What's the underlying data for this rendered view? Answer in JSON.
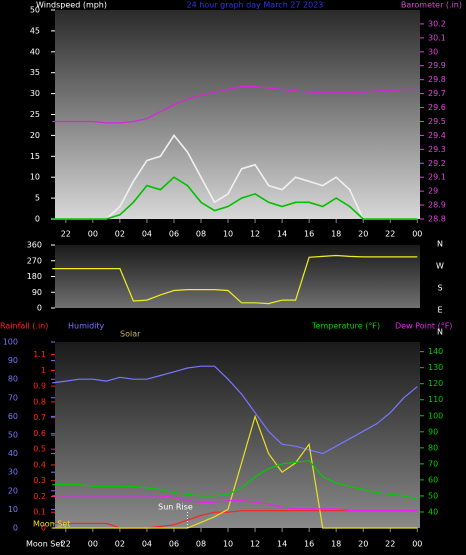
{
  "chart_data": [
    {
      "type": "line",
      "title": "24 hour graph day   March 27 2023",
      "y_label": "Windspeed (mph)",
      "y2_label": "Barometer (.in)",
      "x": [
        -3,
        -2,
        -1,
        0,
        1,
        2,
        3,
        4,
        5,
        6,
        7,
        8,
        9,
        10,
        11,
        12,
        13,
        14,
        15,
        16,
        17,
        18,
        19,
        20,
        21,
        22,
        23,
        24
      ],
      "xlim": [
        -2.8,
        24.2
      ],
      "xticks": [
        {
          "value": -2,
          "label": "22"
        },
        {
          "value": 0,
          "label": "00"
        },
        {
          "value": 2,
          "label": "02"
        },
        {
          "value": 4,
          "label": "04"
        },
        {
          "value": 6,
          "label": "06"
        },
        {
          "value": 8,
          "label": "08"
        },
        10,
        12,
        14,
        16,
        18,
        20,
        22,
        {
          "value": 24,
          "label": "00"
        }
      ],
      "ylim": [
        0,
        50
      ],
      "yticks": [
        0,
        5,
        10,
        15,
        20,
        25,
        30,
        35,
        40,
        45,
        50
      ],
      "ycolor": "#ffffff",
      "y2lim": [
        28.8,
        30.3
      ],
      "y2ticks": [
        28.8,
        28.9,
        29,
        29.1,
        29.2,
        29.3,
        29.4,
        29.5,
        29.6,
        29.7,
        29.8,
        29.9,
        30,
        30.1,
        30.2
      ],
      "y2color": "#dd44dd",
      "series": [
        {
          "color": "#f0f0f0",
          "values": [
            0,
            0,
            0,
            0,
            0,
            3,
            9,
            14,
            15,
            20,
            16,
            10,
            4,
            6,
            12,
            13,
            8,
            7,
            10,
            9,
            8,
            10,
            7,
            0,
            0,
            0,
            0,
            0
          ]
        },
        {
          "color": "#00c000",
          "values": [
            0,
            0,
            0,
            0,
            0,
            1,
            4,
            8,
            7,
            10,
            8,
            4,
            2,
            3,
            5,
            6,
            4,
            3,
            4,
            4,
            3,
            5,
            3,
            0,
            0,
            0,
            0,
            0
          ]
        },
        {
          "color": "#dd22dd",
          "axis": "y2",
          "values": [
            29.5,
            29.5,
            29.5,
            29.5,
            29.49,
            29.49,
            29.5,
            29.52,
            29.57,
            29.62,
            29.66,
            29.69,
            29.71,
            29.73,
            29.75,
            29.75,
            29.74,
            29.73,
            29.72,
            29.71,
            29.71,
            29.71,
            29.71,
            29.71,
            29.72,
            29.72,
            29.73,
            29.73
          ]
        }
      ]
    },
    {
      "type": "line",
      "compass": [
        "N",
        "W",
        "S",
        "E",
        "N"
      ],
      "x": [
        -3,
        -2,
        -1,
        0,
        1,
        2,
        3,
        4,
        5,
        6,
        7,
        8,
        9,
        10,
        11,
        12,
        13,
        14,
        15,
        16,
        17,
        18,
        19,
        20,
        21,
        22,
        23,
        24
      ],
      "xlim": [
        -2.8,
        24.2
      ],
      "ylim": [
        0,
        360
      ],
      "yticks": [
        0,
        90,
        180,
        270,
        360
      ],
      "ycolor": "#ffffff",
      "series": [
        {
          "color": "#eeee22",
          "values": [
            225,
            225,
            225,
            225,
            225,
            225,
            40,
            45,
            75,
            100,
            105,
            105,
            105,
            100,
            30,
            30,
            25,
            45,
            45,
            290,
            295,
            300,
            295,
            292,
            292,
            292,
            292,
            292
          ]
        }
      ]
    },
    {
      "type": "line",
      "x": [
        -3,
        -2,
        -1,
        0,
        1,
        2,
        3,
        4,
        5,
        6,
        7,
        8,
        9,
        10,
        11,
        12,
        13,
        14,
        15,
        16,
        17,
        18,
        19,
        20,
        21,
        22,
        23,
        24
      ],
      "xlim": [
        -2.8,
        24.2
      ],
      "xticks": [
        {
          "value": -2,
          "label": "22"
        },
        {
          "value": 0,
          "label": "00"
        },
        {
          "value": 2,
          "label": "02"
        },
        {
          "value": 4,
          "label": "04"
        },
        {
          "value": 6,
          "label": "06"
        },
        {
          "value": 8,
          "label": "08"
        },
        10,
        12,
        14,
        16,
        18,
        20,
        22,
        {
          "value": 24,
          "label": "00"
        }
      ],
      "ylim": [
        0,
        100
      ],
      "yticks": [
        0,
        10,
        20,
        30,
        40,
        50,
        60,
        70,
        80,
        90,
        100
      ],
      "ycolor": "#7777ff",
      "y2lim": [
        30,
        146
      ],
      "y2ticks": [
        40,
        50,
        60,
        70,
        80,
        90,
        100,
        110,
        120,
        130,
        140
      ],
      "y2color": "#00cc00",
      "y3lim": [
        0,
        1.18
      ],
      "y3ticks": [
        0,
        0.1,
        0.2,
        0.3,
        0.4,
        0.5,
        0.6,
        0.7,
        0.8,
        0.9,
        1,
        1.1
      ],
      "y3color": "#ff2020",
      "annotations": [
        {
          "text": "Sun Rise",
          "x": 7
        },
        {
          "text": "Moon Set"
        },
        {
          "text": "Moon Set"
        }
      ],
      "series": [
        {
          "name": "Rainfall (.in)",
          "color": "#ff2020",
          "axis": "y3",
          "values": [
            0.03,
            0.03,
            0.03,
            0.03,
            0.03,
            0,
            0,
            0,
            0.01,
            0.02,
            0.05,
            0.08,
            0.1,
            0.1,
            0.11,
            0.11,
            0.11,
            0.11,
            0.11,
            0.11,
            0.11,
            0.11,
            0.11,
            0.11,
            0.11,
            0.11,
            0.11,
            0.11
          ]
        },
        {
          "name": "Humidity",
          "color": "#7777ff",
          "values": [
            78,
            79,
            80,
            80,
            79,
            81,
            80,
            80,
            82,
            84,
            86,
            87,
            87,
            80,
            72,
            62,
            52,
            45,
            44,
            42,
            40,
            44,
            48,
            52,
            56,
            62,
            70,
            76
          ]
        },
        {
          "name": "Solar",
          "color": "#e8e020",
          "values": [
            0,
            0,
            0,
            0,
            0,
            0,
            0,
            0,
            0,
            0,
            0,
            3,
            6,
            10,
            35,
            60,
            40,
            30,
            35,
            45,
            0,
            0,
            0,
            0,
            0,
            0,
            0,
            0
          ]
        },
        {
          "name": "Temperature (°F)",
          "color": "#00cc00",
          "axis": "y2",
          "values": [
            57,
            57,
            57,
            56,
            56,
            56,
            56,
            55,
            54,
            52,
            51,
            50,
            50,
            51,
            55,
            62,
            67,
            70,
            71,
            72,
            62,
            58,
            56,
            54,
            52,
            51,
            50,
            48
          ]
        },
        {
          "name": "Dew Point (°F)",
          "color": "#ee22ee",
          "axis": "y2",
          "values": [
            50,
            50,
            50,
            50,
            50,
            50,
            50,
            50,
            50,
            49,
            47,
            46,
            46,
            47,
            47,
            46,
            45,
            43,
            42,
            42,
            42,
            42,
            41,
            41,
            41,
            41,
            41,
            41
          ]
        }
      ]
    }
  ]
}
